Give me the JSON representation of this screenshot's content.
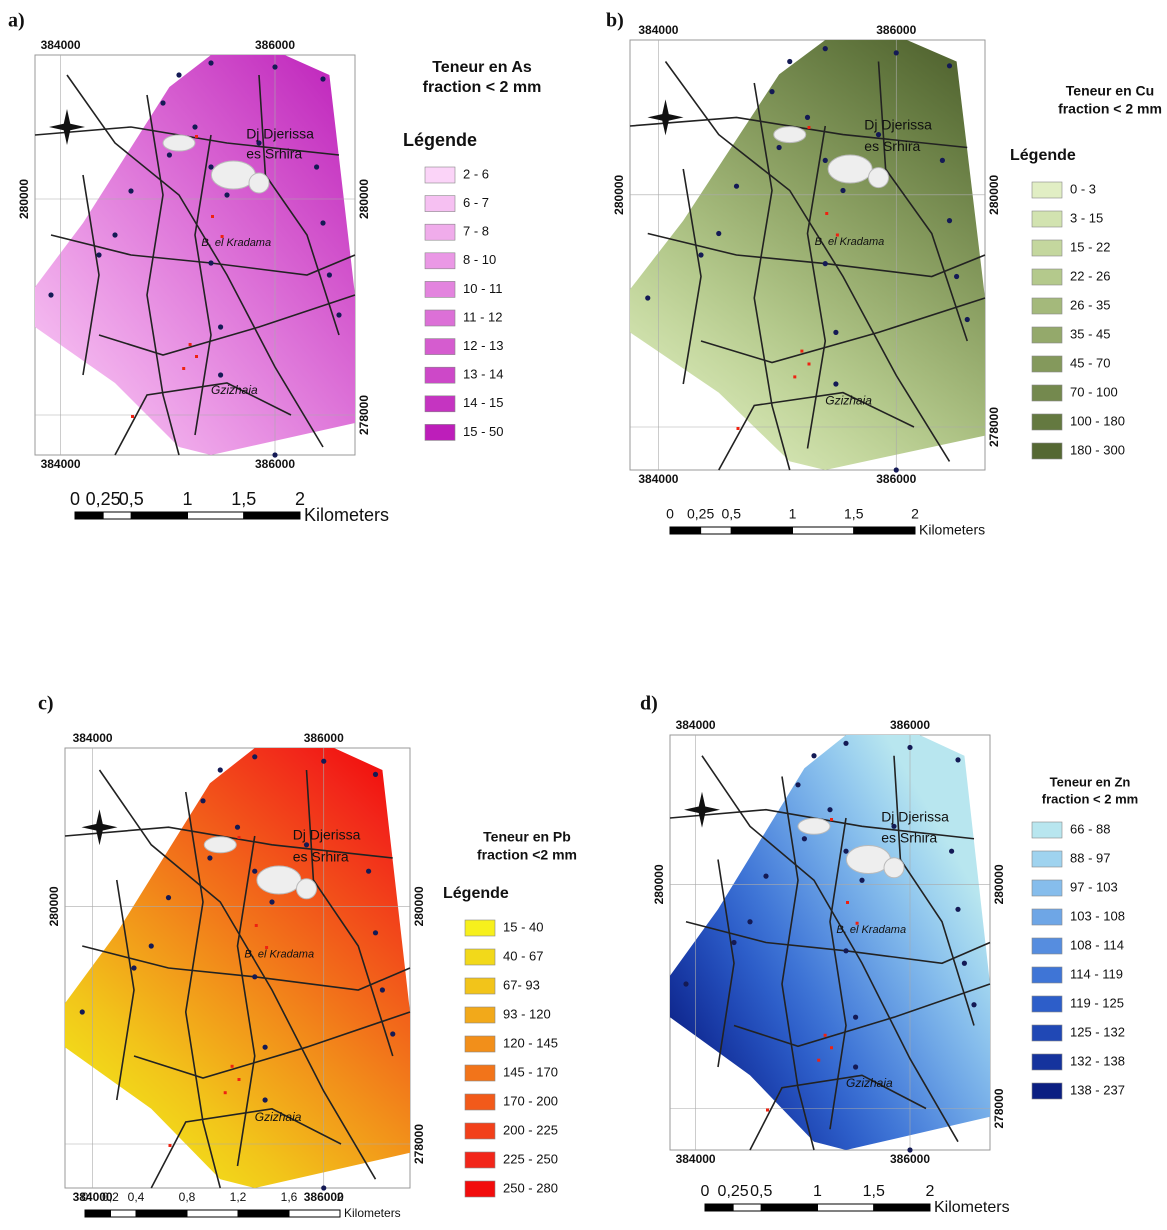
{
  "panels": [
    {
      "label": "a)",
      "title": [
        "Teneur en As",
        "fraction < 2 mm"
      ],
      "legend_title": "Légende",
      "legend": [
        {
          "label": "2 - 6",
          "color": "#fbd4f8"
        },
        {
          "label": "6 - 7",
          "color": "#f6c0f2"
        },
        {
          "label": "7 - 8",
          "color": "#f0aceb"
        },
        {
          "label": "8 - 10",
          "color": "#ea98e5"
        },
        {
          "label": "10 - 11",
          "color": "#e384de"
        },
        {
          "label": "11 - 12",
          "color": "#dc70d7"
        },
        {
          "label": "12 - 13",
          "color": "#d55ccf"
        },
        {
          "label": "13 - 14",
          "color": "#cd48c8"
        },
        {
          "label": "14 - 15",
          "color": "#c534c1"
        },
        {
          "label": "15 - 50",
          "color": "#bd1eba"
        }
      ],
      "places": [
        "Dj Djerissa",
        "es Srhira",
        "B. el Kradama",
        "Gzizhaia"
      ],
      "x_coords": [
        "384000",
        "386000"
      ],
      "y_coords": [
        "280000",
        "278000"
      ],
      "scale": [
        "0",
        "0,25",
        "0,5",
        "1",
        "1,5",
        "2"
      ],
      "scale_unit": "Kilometers"
    },
    {
      "label": "b)",
      "title": [
        "Teneur en Cu",
        "fraction < 2 mm"
      ],
      "legend_title": "Légende",
      "legend": [
        {
          "label": "0 - 3",
          "color": "#e1eec4"
        },
        {
          "label": "3 - 15",
          "color": "#d2e3b0"
        },
        {
          "label": "15 - 22",
          "color": "#c4d79e"
        },
        {
          "label": "22 - 26",
          "color": "#b4c98c"
        },
        {
          "label": "26 - 35",
          "color": "#a4b97b"
        },
        {
          "label": "35 - 45",
          "color": "#94a96b"
        },
        {
          "label": "45 - 70",
          "color": "#84995c"
        },
        {
          "label": "70 - 100",
          "color": "#74894e"
        },
        {
          "label": "100 - 180",
          "color": "#647940"
        },
        {
          "label": "180 - 300",
          "color": "#556833"
        }
      ],
      "places": [
        "Dj Djerissa",
        "es Srhira",
        "B. el Kradama",
        "Gzizhaia"
      ],
      "x_coords": [
        "384000",
        "386000"
      ],
      "y_coords": [
        "280000",
        "278000"
      ],
      "scale": [
        "0",
        "0,25",
        "0,5",
        "1",
        "1,5",
        "2"
      ],
      "scale_unit": "Kilometers"
    },
    {
      "label": "c)",
      "title": [
        "Teneur en Pb",
        "fraction <2 mm"
      ],
      "legend_title": "Légende",
      "legend": [
        {
          "label": "15 - 40",
          "color": "#f7f01c"
        },
        {
          "label": "40 - 67",
          "color": "#f2d91a"
        },
        {
          "label": "67- 93",
          "color": "#f2c41a"
        },
        {
          "label": "93 - 120",
          "color": "#f2a91a"
        },
        {
          "label": "120 - 145",
          "color": "#f28f1a"
        },
        {
          "label": "145 - 170",
          "color": "#f2741a"
        },
        {
          "label": "170 - 200",
          "color": "#f25a1a"
        },
        {
          "label": "200 - 225",
          "color": "#f2401a"
        },
        {
          "label": "225 - 250",
          "color": "#f2261a"
        },
        {
          "label": "250 - 280",
          "color": "#f20c0c"
        }
      ],
      "places": [
        "Dj Djerissa",
        "es Srhira",
        "B. el Kradama",
        "Gzizhaia"
      ],
      "x_coords": [
        "384000",
        "386000"
      ],
      "y_coords": [
        "280000",
        "278000"
      ],
      "scale": [
        "0",
        "0,2",
        "0,4",
        "0,8",
        "1,2",
        "1,6",
        "2"
      ],
      "scale_unit": "Kilometers"
    },
    {
      "label": "d)",
      "title": [
        "Teneur en Zn",
        "fraction < 2 mm"
      ],
      "legend": [
        {
          "label": "66 - 88",
          "color": "#b8e6ef"
        },
        {
          "label": "88 - 97",
          "color": "#9fd3ef"
        },
        {
          "label": "97 - 103",
          "color": "#86bdec"
        },
        {
          "label": "103 - 108",
          "color": "#6ea6e6"
        },
        {
          "label": "108 - 114",
          "color": "#568ddf"
        },
        {
          "label": "114 - 119",
          "color": "#3f75d6"
        },
        {
          "label": "119 - 125",
          "color": "#2d5ec9"
        },
        {
          "label": "125 - 132",
          "color": "#2048b5"
        },
        {
          "label": "132 - 138",
          "color": "#15339d"
        },
        {
          "label": "138 - 237",
          "color": "#0b1f82"
        }
      ],
      "places": [
        "Dj Djerissa",
        "es Srhira",
        "B. el Kradama",
        "Gzizhaia"
      ],
      "x_coords": [
        "384000",
        "386000"
      ],
      "y_coords": [
        "280000",
        "278000"
      ],
      "scale": [
        "0",
        "0,25",
        "0,5",
        "1",
        "1,5",
        "2"
      ],
      "scale_unit": "Kilometers"
    }
  ]
}
